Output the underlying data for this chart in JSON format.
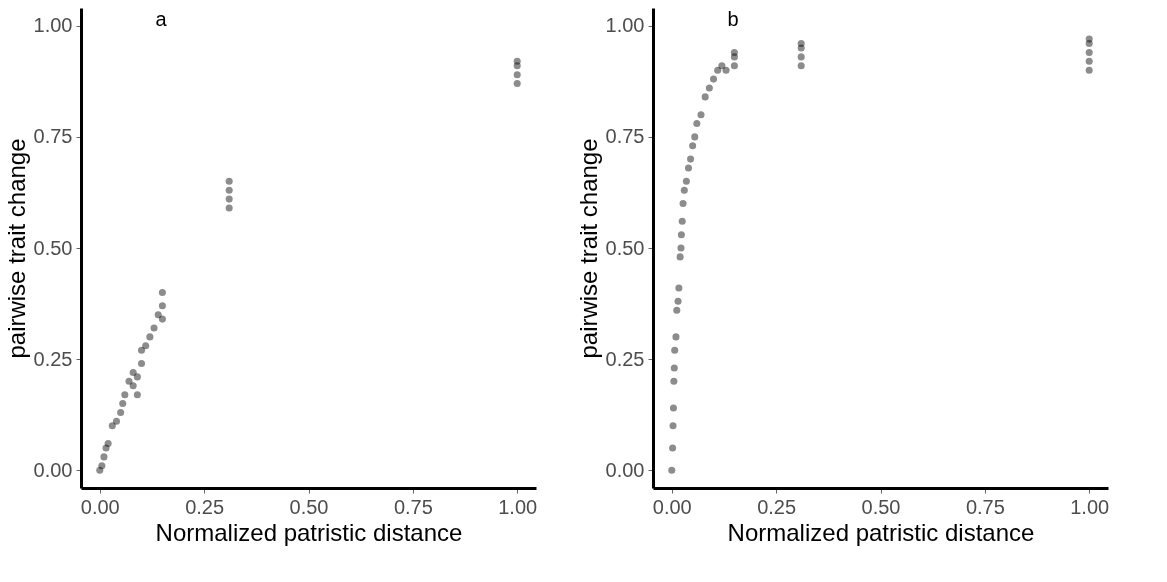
{
  "chart_data": [
    {
      "type": "scatter",
      "xlabel": "Normalized patristic distance",
      "ylabel": "pairwise trait change",
      "annotations": [
        "a"
      ],
      "xlim": [
        -0.045,
        1.045
      ],
      "ylim": [
        -0.04,
        1.04
      ],
      "xticks": [
        {
          "value": 0,
          "label": "0.00"
        },
        {
          "value": 0.25,
          "label": "0.25"
        },
        {
          "value": 0.5,
          "label": "0.50"
        },
        {
          "value": 0.75,
          "label": "0.75"
        },
        {
          "value": 1,
          "label": "1.00"
        }
      ],
      "yticks": [
        {
          "value": 0,
          "label": "0.00"
        },
        {
          "value": 0.25,
          "label": "0.25"
        },
        {
          "value": 0.5,
          "label": "0.50"
        },
        {
          "value": 0.75,
          "label": "0.75"
        },
        {
          "value": 1,
          "label": "1.00"
        }
      ],
      "grid": false,
      "marker": "circle",
      "series": [
        {
          "color": "#000000",
          "x": [
            0,
            0.005,
            0.01,
            0.015,
            0.02,
            0.03,
            0.04,
            0.05,
            0.055,
            0.06,
            0.07,
            0.08,
            0.08,
            0.09,
            0.09,
            0.1,
            0.1,
            0.11,
            0.12,
            0.13,
            0.14,
            0.15,
            0.15,
            0.15,
            0.31,
            0.31,
            0.31,
            0.31,
            1,
            1,
            1,
            1
          ],
          "values": [
            0,
            0.01,
            0.03,
            0.05,
            0.06,
            0.1,
            0.11,
            0.13,
            0.15,
            0.17,
            0.2,
            0.22,
            0.19,
            0.21,
            0.17,
            0.24,
            0.27,
            0.28,
            0.3,
            0.32,
            0.35,
            0.34,
            0.37,
            0.4,
            0.59,
            0.61,
            0.63,
            0.65,
            0.87,
            0.89,
            0.91,
            0.92
          ]
        }
      ]
    },
    {
      "type": "scatter",
      "xlabel": "Normalized patristic distance",
      "ylabel": "pairwise trait change",
      "annotations": [
        "b"
      ],
      "xlim": [
        -0.045,
        1.045
      ],
      "ylim": [
        -0.04,
        1.04
      ],
      "xticks": [
        {
          "value": 0,
          "label": "0.00"
        },
        {
          "value": 0.25,
          "label": "0.25"
        },
        {
          "value": 0.5,
          "label": "0.50"
        },
        {
          "value": 0.75,
          "label": "0.75"
        },
        {
          "value": 1,
          "label": "1.00"
        }
      ],
      "yticks": [
        {
          "value": 0,
          "label": "0.00"
        },
        {
          "value": 0.25,
          "label": "0.25"
        },
        {
          "value": 0.5,
          "label": "0.50"
        },
        {
          "value": 0.75,
          "label": "0.75"
        },
        {
          "value": 1,
          "label": "1.00"
        }
      ],
      "grid": false,
      "marker": "circle",
      "series": [
        {
          "color": "#000000",
          "x": [
            0,
            0.002,
            0.003,
            0.004,
            0.005,
            0.006,
            0.007,
            0.01,
            0.012,
            0.015,
            0.017,
            0.02,
            0.022,
            0.023,
            0.025,
            0.027,
            0.03,
            0.035,
            0.04,
            0.045,
            0.05,
            0.055,
            0.06,
            0.07,
            0.08,
            0.09,
            0.1,
            0.11,
            0.12,
            0.13,
            0.15,
            0.15,
            0.15,
            0.31,
            0.31,
            0.31,
            0.31,
            1,
            1,
            1,
            1,
            1
          ],
          "values": [
            0,
            0.05,
            0.1,
            0.14,
            0.2,
            0.23,
            0.27,
            0.3,
            0.36,
            0.38,
            0.41,
            0.48,
            0.5,
            0.53,
            0.56,
            0.6,
            0.63,
            0.65,
            0.68,
            0.7,
            0.73,
            0.75,
            0.78,
            0.8,
            0.84,
            0.86,
            0.88,
            0.9,
            0.91,
            0.9,
            0.91,
            0.93,
            0.94,
            0.91,
            0.93,
            0.95,
            0.96,
            0.9,
            0.92,
            0.94,
            0.96,
            0.97
          ]
        }
      ]
    }
  ]
}
